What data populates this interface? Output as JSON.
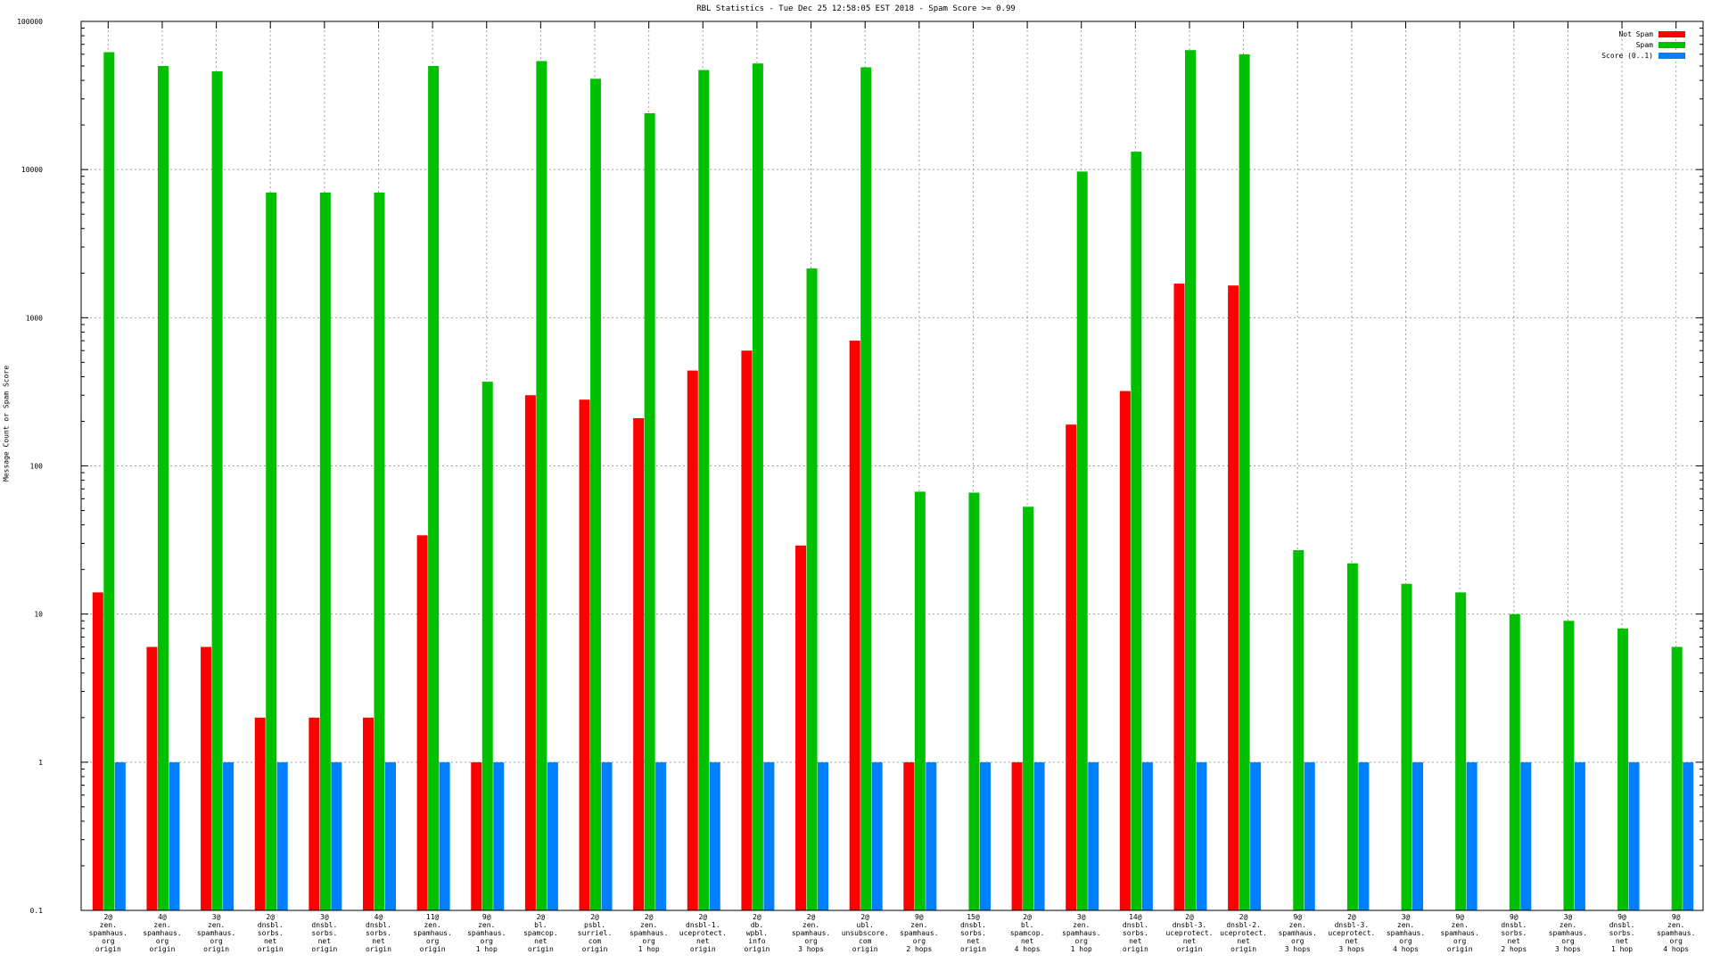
{
  "chart_data": {
    "type": "bar",
    "title": "RBL Statistics - Tue Dec 25 12:58:05 EST 2018 - Spam Score >= 0.99",
    "xlabel": "",
    "ylabel": "Message Count or Spam Score",
    "yscale": "log",
    "ylim": [
      0.1,
      100000
    ],
    "yticks": [
      "0.1",
      "1",
      "10",
      "100",
      "1000",
      "10000",
      "100000"
    ],
    "grid": true,
    "legend_position": "top-right",
    "categories": [
      [
        "2@",
        "zen.",
        "spamhaus.",
        "org",
        "origin"
      ],
      [
        "4@",
        "zen.",
        "spamhaus.",
        "org",
        "origin"
      ],
      [
        "3@",
        "zen.",
        "spamhaus.",
        "org",
        "origin"
      ],
      [
        "2@",
        "dnsbl.",
        "sorbs.",
        "net",
        "origin"
      ],
      [
        "3@",
        "dnsbl.",
        "sorbs.",
        "net",
        "origin"
      ],
      [
        "4@",
        "dnsbl.",
        "sorbs.",
        "net",
        "origin"
      ],
      [
        "11@",
        "zen.",
        "spamhaus.",
        "org",
        "origin"
      ],
      [
        "9@",
        "zen.",
        "spamhaus.",
        "org",
        "1 hop"
      ],
      [
        "2@",
        "bl.",
        "spamcop.",
        "net",
        "origin"
      ],
      [
        "2@",
        "psbl.",
        "surriel.",
        "com",
        "origin"
      ],
      [
        "2@",
        "zen.",
        "spamhaus.",
        "org",
        "1 hop"
      ],
      [
        "2@",
        "dnsbl-1.",
        "uceprotect.",
        "net",
        "origin"
      ],
      [
        "2@",
        "db.",
        "wpbl.",
        "info",
        "origin"
      ],
      [
        "2@",
        "zen.",
        "spamhaus.",
        "org",
        "3 hops"
      ],
      [
        "2@",
        "ubl.",
        "unsubscore.",
        "com",
        "origin"
      ],
      [
        "9@",
        "zen.",
        "spamhaus.",
        "org",
        "2 hops"
      ],
      [
        "15@",
        "dnsbl.",
        "sorbs.",
        "net",
        "origin"
      ],
      [
        "2@",
        "bl.",
        "spamcop.",
        "net",
        "4 hops"
      ],
      [
        "3@",
        "zen.",
        "spamhaus.",
        "org",
        "1 hop"
      ],
      [
        "14@",
        "dnsbl.",
        "sorbs.",
        "net",
        "origin"
      ],
      [
        "2@",
        "dnsbl-3.",
        "uceprotect.",
        "net",
        "origin"
      ],
      [
        "2@",
        "dnsbl-2.",
        "uceprotect.",
        "net",
        "origin"
      ],
      [
        "9@",
        "zen.",
        "spamhaus.",
        "org",
        "3 hops"
      ],
      [
        "2@",
        "dnsbl-3.",
        "uceprotect.",
        "net",
        "3 hops"
      ],
      [
        "3@",
        "zen.",
        "spamhaus.",
        "org",
        "4 hops"
      ],
      [
        "9@",
        "zen.",
        "spamhaus.",
        "org",
        "origin"
      ],
      [
        "9@",
        "dnsbl.",
        "sorbs.",
        "net",
        "2 hops"
      ],
      [
        "3@",
        "zen.",
        "spamhaus.",
        "org",
        "3 hops"
      ],
      [
        "9@",
        "dnsbl.",
        "sorbs.",
        "net",
        "1 hop"
      ],
      [
        "9@",
        "zen.",
        "spamhaus.",
        "org",
        "4 hops"
      ]
    ],
    "series": [
      {
        "name": "Not Spam",
        "color": "#ff0000",
        "values": [
          14,
          6,
          6,
          2,
          2,
          2,
          34,
          1,
          300,
          280,
          210,
          440,
          600,
          29,
          700,
          1,
          0,
          1,
          190,
          320,
          1700,
          1650,
          0,
          0,
          0,
          0,
          0,
          0,
          0,
          0
        ]
      },
      {
        "name": "Spam",
        "color": "#00c000",
        "values": [
          62000,
          50000,
          46000,
          7000,
          7000,
          7000,
          50000,
          370,
          54000,
          41000,
          24000,
          47000,
          52000,
          2150,
          49000,
          67,
          66,
          53,
          9700,
          13200,
          64000,
          60000,
          27,
          22,
          16,
          14,
          10,
          9,
          8,
          6
        ]
      },
      {
        "name": "Score (0..1)",
        "color": "#0080ff",
        "values": [
          1,
          1,
          1,
          1,
          1,
          1,
          1,
          1,
          1,
          1,
          1,
          1,
          1,
          1,
          1,
          1,
          1,
          1,
          1,
          1,
          1,
          1,
          1,
          1,
          1,
          1,
          1,
          1,
          1,
          1
        ]
      }
    ]
  }
}
